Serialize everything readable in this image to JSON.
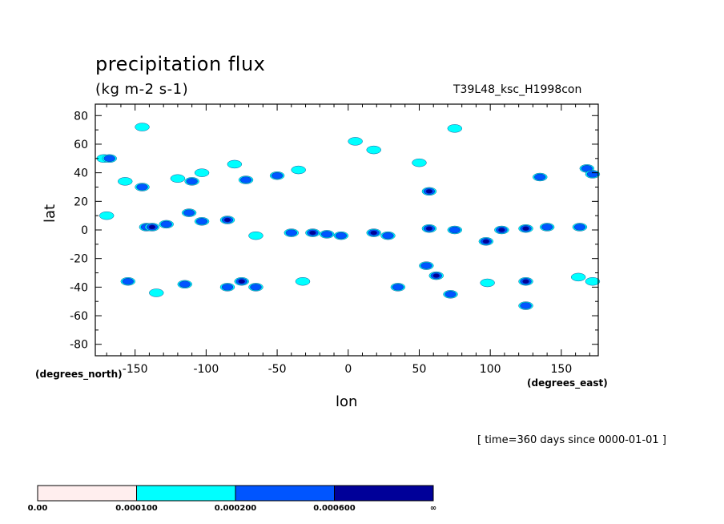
{
  "chart_data": {
    "type": "contour",
    "title": "precipitation flux",
    "units": "(kg m-2 s-1)",
    "model_label": "T39L48_ksc_H1998con",
    "xlabel": "lon",
    "ylabel": "lat",
    "x_unit_left": "(degrees_north)",
    "x_unit_right": "(degrees_east)",
    "time_note": "[ time=360 days since 0000-01-01 ]",
    "xlim": [
      -178,
      176
    ],
    "ylim": [
      -88,
      88
    ],
    "x_ticks": [
      -150,
      -100,
      -50,
      0,
      50,
      100,
      150
    ],
    "y_ticks": [
      80,
      60,
      40,
      20,
      0,
      -20,
      -40,
      -60,
      -80
    ],
    "grid": false,
    "colorbar": {
      "levels": [
        "0.00",
        "0.000100",
        "0.000200",
        "0.000600",
        "∞"
      ],
      "colors": [
        "#ffeeee",
        "#00ffff",
        "#0055ff",
        "#000099"
      ]
    },
    "cells": [
      {
        "lon": -172,
        "lat": 50,
        "level": 1
      },
      {
        "lon": -168,
        "lat": 50,
        "level": 2
      },
      {
        "lon": -170,
        "lat": 10,
        "level": 1
      },
      {
        "lon": -157,
        "lat": 34,
        "level": 1
      },
      {
        "lon": -145,
        "lat": 72,
        "level": 1
      },
      {
        "lon": -145,
        "lat": 30,
        "level": 2
      },
      {
        "lon": -142,
        "lat": 2,
        "level": 2
      },
      {
        "lon": -138,
        "lat": 2,
        "level": 3
      },
      {
        "lon": -128,
        "lat": 4,
        "level": 2
      },
      {
        "lon": -120,
        "lat": 36,
        "level": 1
      },
      {
        "lon": -110,
        "lat": 34,
        "level": 2
      },
      {
        "lon": -103,
        "lat": 40,
        "level": 1
      },
      {
        "lon": -112,
        "lat": 12,
        "level": 2
      },
      {
        "lon": -103,
        "lat": 6,
        "level": 2
      },
      {
        "lon": -85,
        "lat": 7,
        "level": 3
      },
      {
        "lon": -80,
        "lat": 46,
        "level": 1
      },
      {
        "lon": -72,
        "lat": 35,
        "level": 2
      },
      {
        "lon": -65,
        "lat": -4,
        "level": 1
      },
      {
        "lon": -50,
        "lat": 38,
        "level": 2
      },
      {
        "lon": -35,
        "lat": 42,
        "level": 1
      },
      {
        "lon": -40,
        "lat": -2,
        "level": 2
      },
      {
        "lon": -25,
        "lat": -2,
        "level": 3
      },
      {
        "lon": -15,
        "lat": -3,
        "level": 2
      },
      {
        "lon": -5,
        "lat": -4,
        "level": 2
      },
      {
        "lon": 5,
        "lat": 62,
        "level": 1
      },
      {
        "lon": 18,
        "lat": 56,
        "level": 1
      },
      {
        "lon": 18,
        "lat": -2,
        "level": 3
      },
      {
        "lon": 28,
        "lat": -4,
        "level": 2
      },
      {
        "lon": 50,
        "lat": 47,
        "level": 1
      },
      {
        "lon": 57,
        "lat": 27,
        "level": 3
      },
      {
        "lon": 57,
        "lat": 1,
        "level": 3
      },
      {
        "lon": 75,
        "lat": 71,
        "level": 1
      },
      {
        "lon": 75,
        "lat": 0,
        "level": 2
      },
      {
        "lon": 97,
        "lat": -8,
        "level": 3
      },
      {
        "lon": 108,
        "lat": 0,
        "level": 3
      },
      {
        "lon": 125,
        "lat": 1,
        "level": 3
      },
      {
        "lon": 140,
        "lat": 2,
        "level": 2
      },
      {
        "lon": 135,
        "lat": 37,
        "level": 2
      },
      {
        "lon": 163,
        "lat": 2,
        "level": 2
      },
      {
        "lon": 168,
        "lat": 43,
        "level": 2
      },
      {
        "lon": 172,
        "lat": 39,
        "level": 2
      },
      {
        "lon": -155,
        "lat": -36,
        "level": 2
      },
      {
        "lon": -135,
        "lat": -44,
        "level": 1
      },
      {
        "lon": -115,
        "lat": -38,
        "level": 2
      },
      {
        "lon": -85,
        "lat": -40,
        "level": 2
      },
      {
        "lon": -75,
        "lat": -36,
        "level": 3
      },
      {
        "lon": -65,
        "lat": -40,
        "level": 2
      },
      {
        "lon": -32,
        "lat": -36,
        "level": 1
      },
      {
        "lon": 35,
        "lat": -40,
        "level": 2
      },
      {
        "lon": 55,
        "lat": -25,
        "level": 2
      },
      {
        "lon": 62,
        "lat": -32,
        "level": 3
      },
      {
        "lon": 72,
        "lat": -45,
        "level": 2
      },
      {
        "lon": 98,
        "lat": -37,
        "level": 1
      },
      {
        "lon": 125,
        "lat": -36,
        "level": 3
      },
      {
        "lon": 125,
        "lat": -53,
        "level": 2
      },
      {
        "lon": 162,
        "lat": -33,
        "level": 1
      },
      {
        "lon": 172,
        "lat": -36,
        "level": 1
      }
    ]
  }
}
